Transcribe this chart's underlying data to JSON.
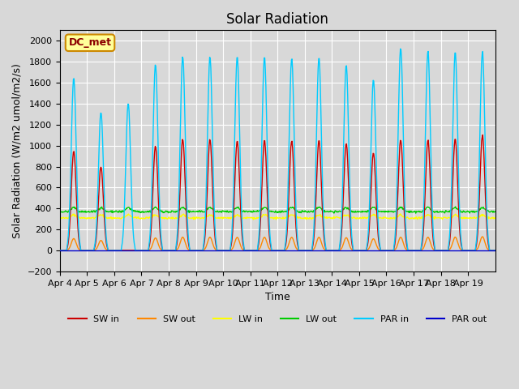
{
  "title": "Solar Radiation",
  "ylabel": "Solar Radiation (W/m2 umol/m2/s)",
  "xlabel": "Time",
  "ylim": [
    -200,
    2100
  ],
  "yticks": [
    -200,
    0,
    200,
    400,
    600,
    800,
    1000,
    1200,
    1400,
    1600,
    1800,
    2000
  ],
  "x_labels": [
    "Apr 4",
    "Apr 5",
    "Apr 6",
    "Apr 7",
    "Apr 8",
    "Apr 9",
    "Apr 10",
    "Apr 11",
    "Apr 12",
    "Apr 13",
    "Apr 14",
    "Apr 15",
    "Apr 16",
    "Apr 17",
    "Apr 18",
    "Apr 19"
  ],
  "site_label": "DC_met",
  "colors": {
    "SW_in": "#cc0000",
    "SW_out": "#ff8800",
    "LW_in": "#ffff00",
    "LW_out": "#00cc00",
    "PAR_in": "#00ccff",
    "PAR_out": "#0000cc"
  },
  "n_days": 16,
  "points_per_day": 48,
  "sw_in_peaks": [
    950,
    800,
    0,
    1000,
    1060,
    1060,
    1040,
    1050,
    1050,
    1050,
    1020,
    930,
    1060,
    1050,
    1070,
    1100
  ],
  "par_in_peaks": [
    1650,
    1320,
    1400,
    1780,
    1850,
    1850,
    1845,
    1845,
    1840,
    1840,
    1770,
    1630,
    1940,
    1900,
    1900,
    1900
  ],
  "lw_in_base": 310,
  "lw_out_base": 370
}
